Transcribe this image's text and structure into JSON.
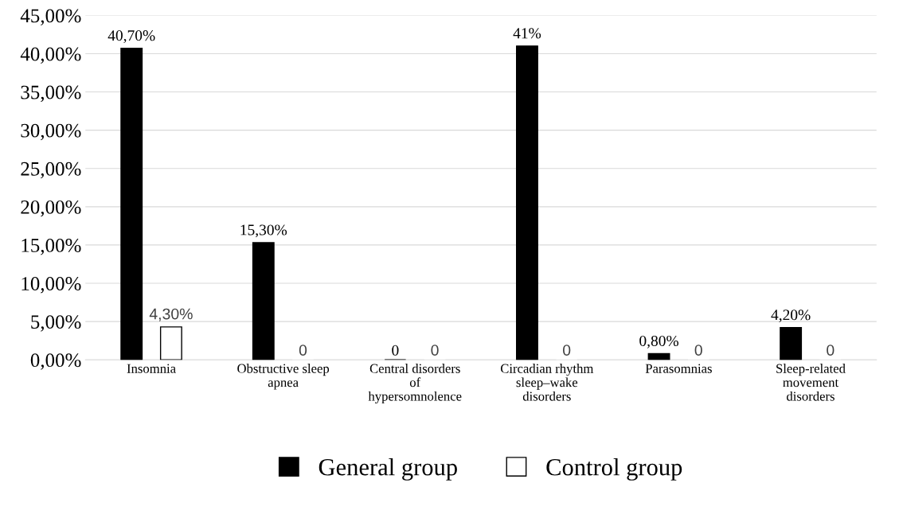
{
  "chart_data": {
    "type": "bar",
    "categories": [
      "Insomnia",
      "Obstructive sleep\napnea",
      "Central disorders\nof\nhypersomnolence",
      "Circadian rhythm\nsleep–wake\ndisorders",
      "Parasomnias",
      "Sleep-related\nmovement\ndisorders"
    ],
    "series": [
      {
        "name": "General group",
        "color": "#000000",
        "values": [
          40.7,
          15.3,
          0,
          41,
          0.8,
          4.2
        ],
        "value_labels": [
          "40,70%",
          "15,30%",
          "0",
          "41%",
          "0,80%",
          "4,20%"
        ]
      },
      {
        "name": "Control group",
        "color": "#ffffff",
        "values": [
          4.3,
          0,
          0,
          0,
          0,
          0
        ],
        "value_labels": [
          "4,30%",
          "0",
          "0",
          "0",
          "0",
          "0"
        ]
      }
    ],
    "ylim": [
      0,
      45
    ],
    "yticks": [
      {
        "value": 0,
        "label": "0,00%"
      },
      {
        "value": 5,
        "label": "5,00%"
      },
      {
        "value": 10,
        "label": "10,00%"
      },
      {
        "value": 15,
        "label": "15,00%"
      },
      {
        "value": 20,
        "label": "20,00%"
      },
      {
        "value": 25,
        "label": "25,00%"
      },
      {
        "value": 30,
        "label": "30,00%"
      },
      {
        "value": 35,
        "label": "35,00%"
      },
      {
        "value": 40,
        "label": "40,00%"
      },
      {
        "value": 45,
        "label": "45,00%"
      }
    ],
    "grid": "y",
    "legend": "bottom"
  }
}
